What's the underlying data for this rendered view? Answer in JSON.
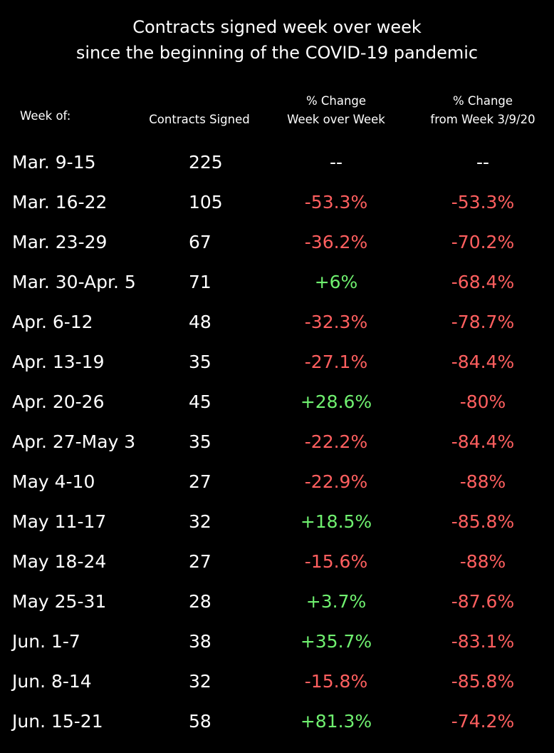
{
  "title": {
    "line1": "Contracts signed week over week",
    "line2": "since the beginning of the COVID-19 pandemic"
  },
  "headers": {
    "week": "Week of:",
    "contracts": "Contracts Signed",
    "wow_line1": "% Change",
    "wow_line2": "Week over Week",
    "base_line1": "% Change",
    "base_line2": "from Week 3/9/20"
  },
  "colors": {
    "negative": "#ff5f5f",
    "positive": "#6ff06f",
    "neutral": "#ffffff",
    "background": "#000000",
    "text": "#ffffff"
  },
  "chart_data": {
    "type": "table",
    "columns": [
      "Week of:",
      "Contracts Signed",
      "% Change Week over Week",
      "% Change from Week 3/9/20"
    ],
    "rows": [
      {
        "week": "Mar. 9-15",
        "contracts": "225",
        "wow": "--",
        "base": "--"
      },
      {
        "week": "Mar. 16-22",
        "contracts": "105",
        "wow": "-53.3%",
        "base": "-53.3%"
      },
      {
        "week": "Mar. 23-29",
        "contracts": "67",
        "wow": "-36.2%",
        "base": "-70.2%"
      },
      {
        "week": "Mar. 30-Apr. 5",
        "contracts": "71",
        "wow": "+6%",
        "base": "-68.4%"
      },
      {
        "week": "Apr. 6-12",
        "contracts": "48",
        "wow": "-32.3%",
        "base": "-78.7%"
      },
      {
        "week": "Apr. 13-19",
        "contracts": "35",
        "wow": "-27.1%",
        "base": "-84.4%"
      },
      {
        "week": "Apr. 20-26",
        "contracts": "45",
        "wow": "+28.6%",
        "base": "-80%"
      },
      {
        "week": "Apr. 27-May 3",
        "contracts": "35",
        "wow": "-22.2%",
        "base": "-84.4%"
      },
      {
        "week": "May 4-10",
        "contracts": "27",
        "wow": "-22.9%",
        "base": "-88%"
      },
      {
        "week": "May 11-17",
        "contracts": "32",
        "wow": "+18.5%",
        "base": "-85.8%"
      },
      {
        "week": "May 18-24",
        "contracts": "27",
        "wow": "-15.6%",
        "base": "-88%"
      },
      {
        "week": "May 25-31",
        "contracts": "28",
        "wow": "+3.7%",
        "base": "-87.6%"
      },
      {
        "week": "Jun. 1-7",
        "contracts": "38",
        "wow": "+35.7%",
        "base": "-83.1%"
      },
      {
        "week": "Jun. 8-14",
        "contracts": "32",
        "wow": "-15.8%",
        "base": "-85.8%"
      },
      {
        "week": "Jun. 15-21",
        "contracts": "58",
        "wow": "+81.3%",
        "base": "-74.2%"
      }
    ]
  }
}
